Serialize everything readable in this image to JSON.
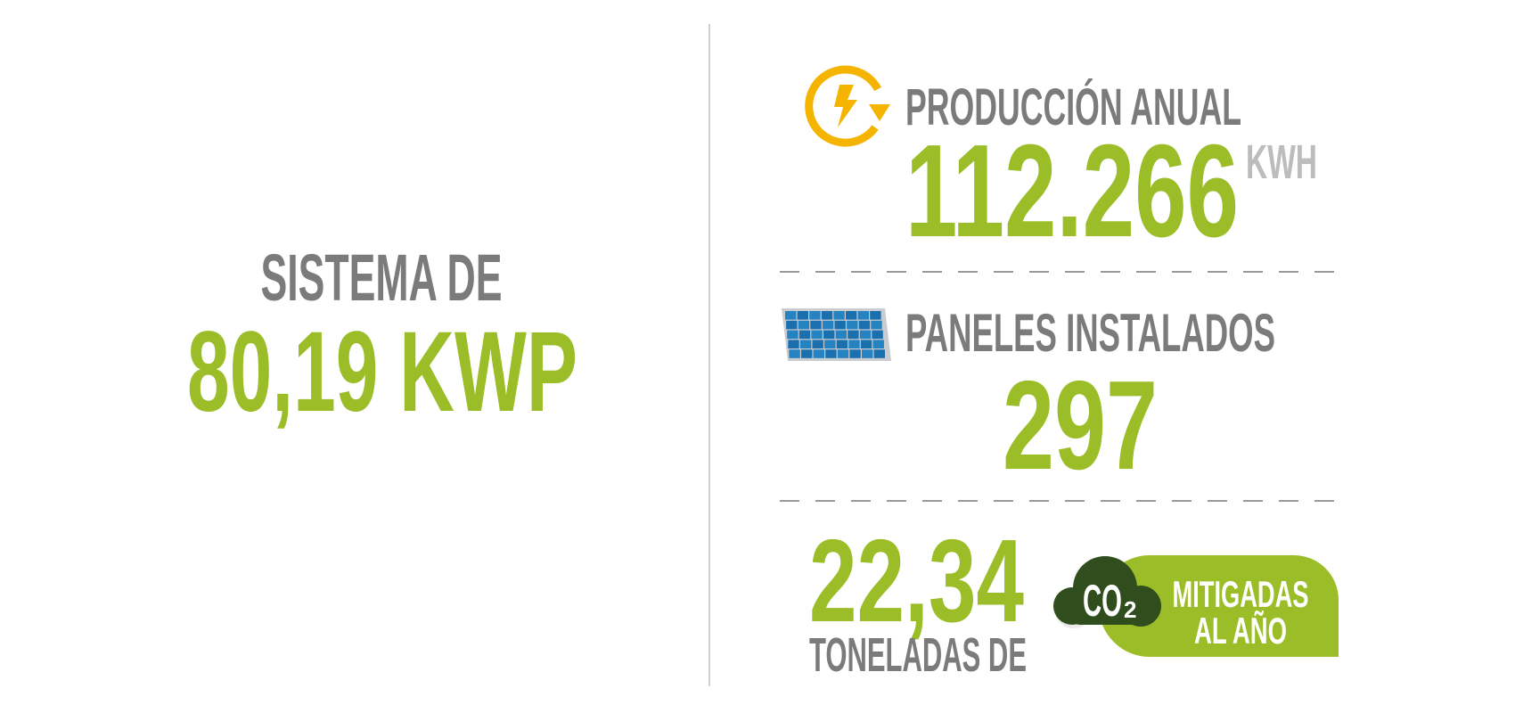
{
  "system": {
    "label": "SISTEMA DE",
    "value": "80,19 KWP"
  },
  "production": {
    "label": "PRODUCCIÓN ANUAL",
    "value": "112.266",
    "unit": "KWH"
  },
  "panels": {
    "label": "PANELES INSTALADOS",
    "value": "297"
  },
  "co2": {
    "value": "22,34",
    "label": "TONELADAS DE",
    "gas": "CO",
    "subscript": "2",
    "note_line1": "MITIGADAS",
    "note_line2": "AL AÑO"
  }
}
